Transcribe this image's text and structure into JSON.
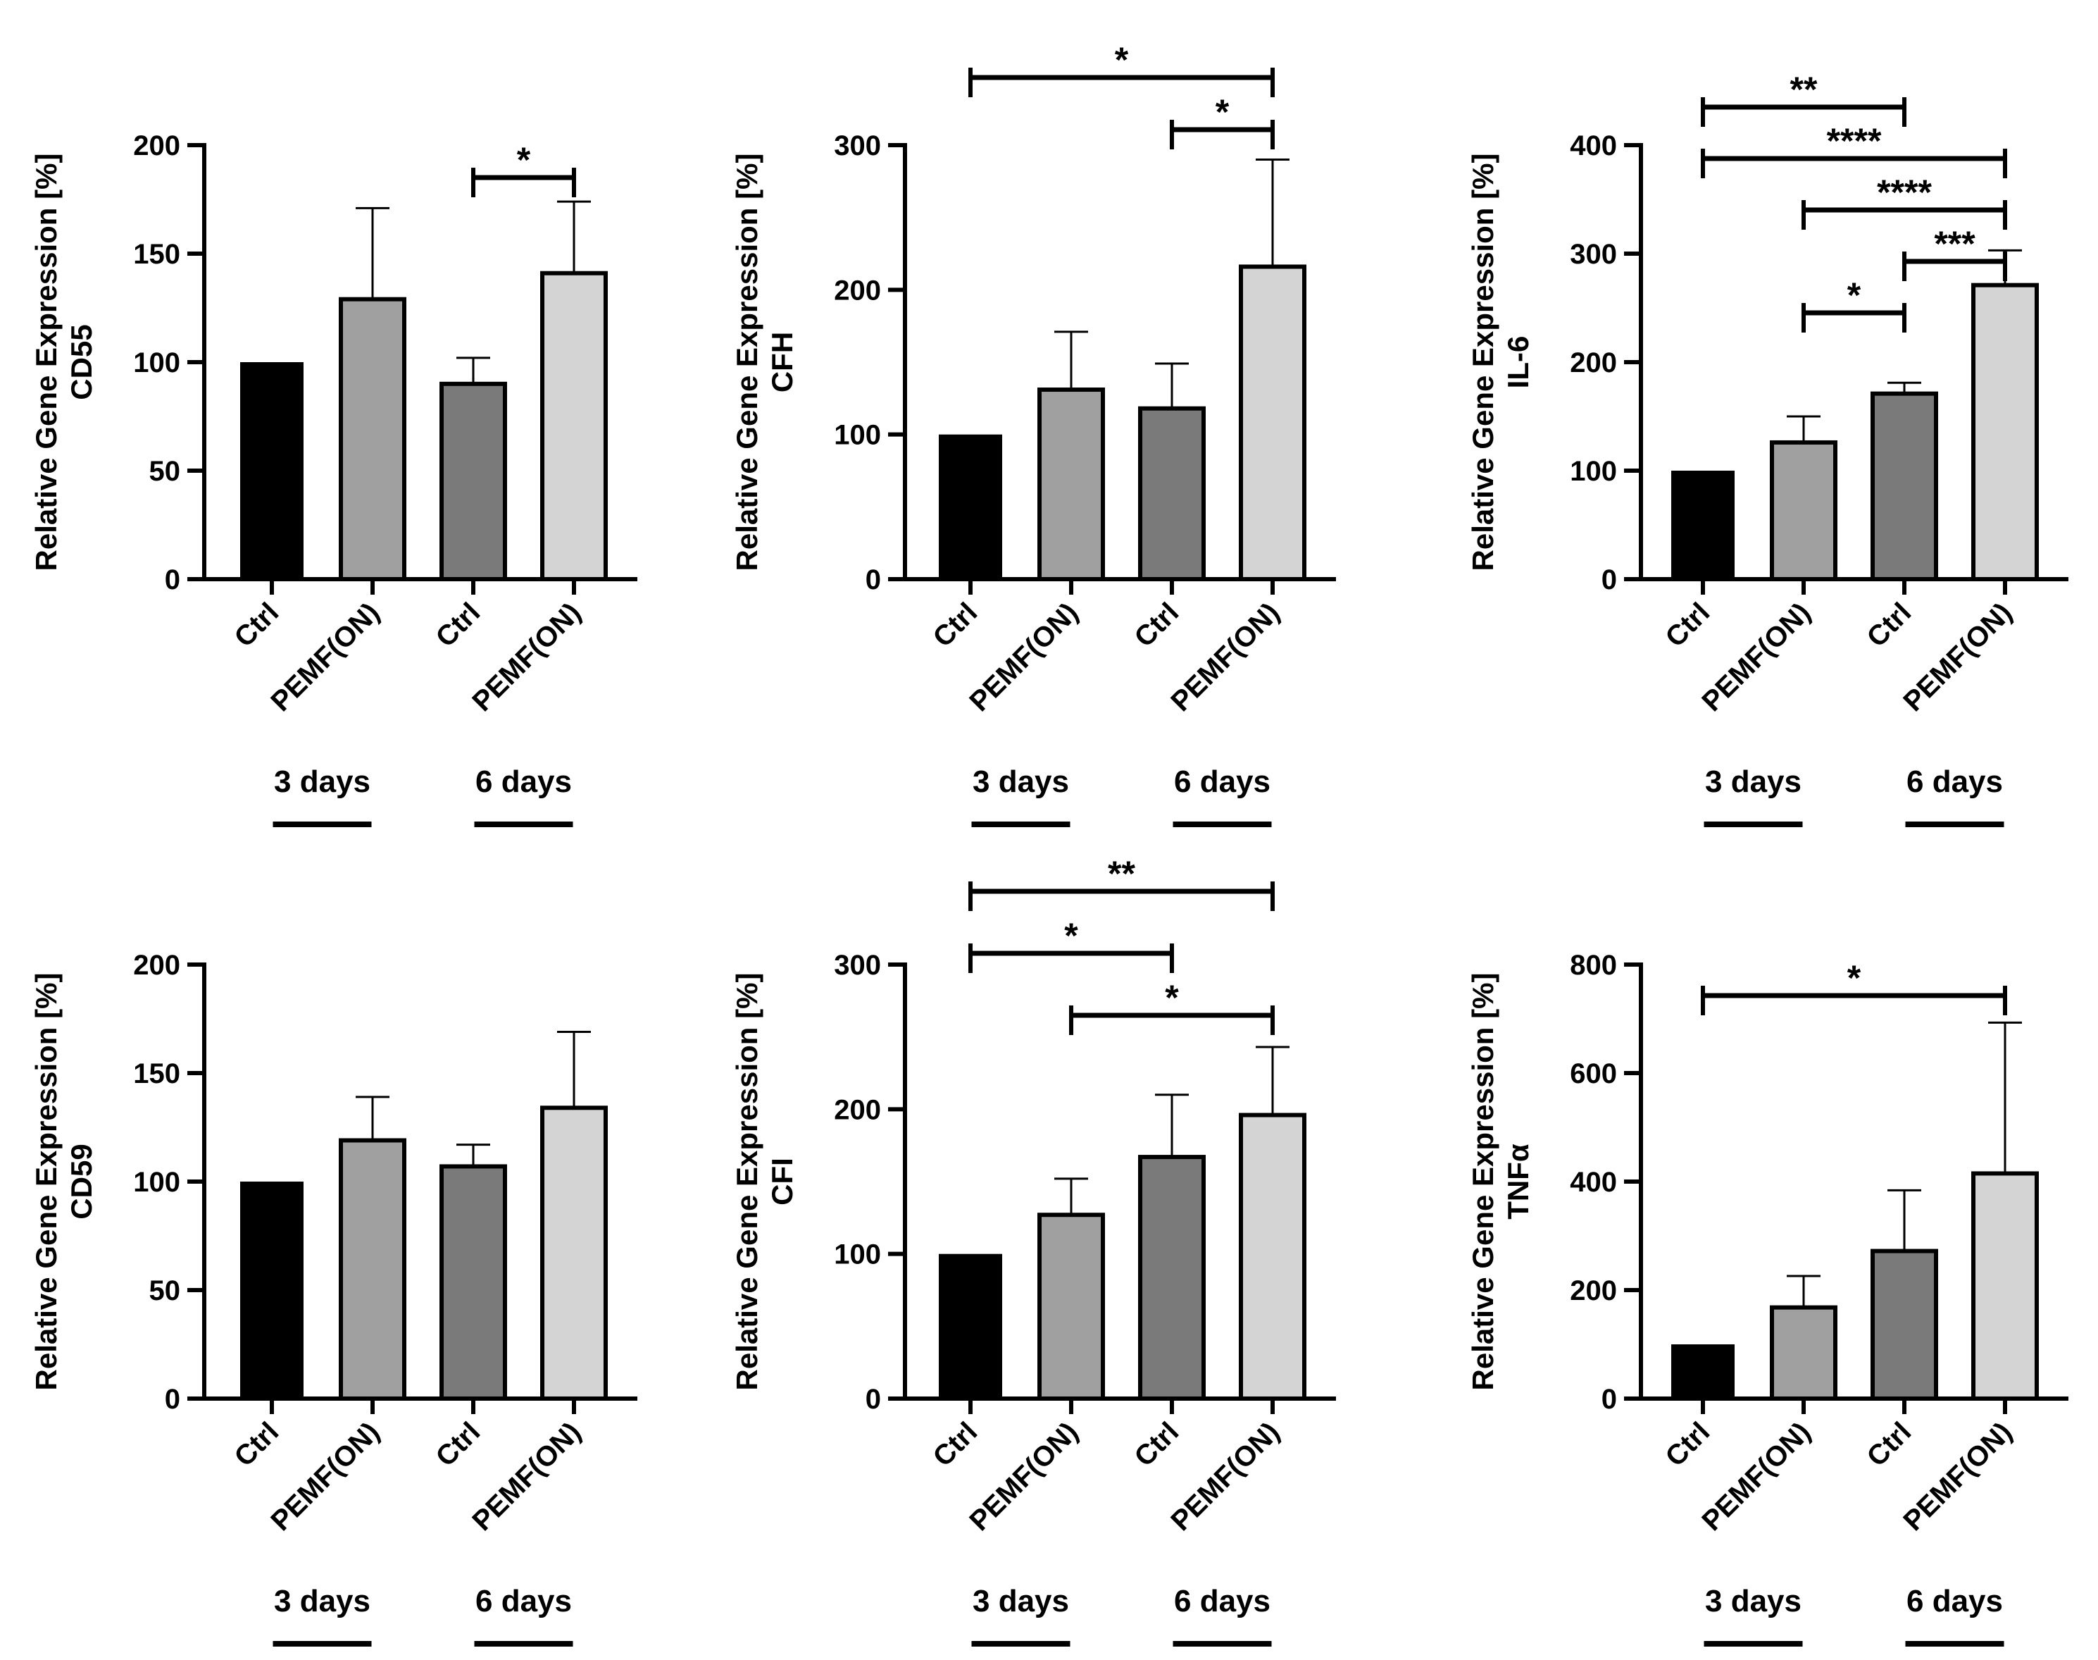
{
  "chart_data": [
    {
      "type": "bar",
      "ylabel": "Relative Gene Expression [%]",
      "gene": "CD55",
      "categories": [
        "Ctrl",
        "PEMF(ON)",
        "Ctrl",
        "PEMF(ON)"
      ],
      "groups": [
        "3 days",
        "6 days"
      ],
      "values": [
        100,
        129,
        90,
        141
      ],
      "errors": [
        0,
        42,
        12,
        33
      ],
      "colors": [
        "#000000",
        "#a0a0a0",
        "#7a7a7a",
        "#d4d4d4"
      ],
      "ylim": [
        0,
        200
      ],
      "yticks": [
        "0",
        "50",
        "100",
        "150",
        "200"
      ],
      "significance": [
        {
          "from": 2,
          "to": 3,
          "label": "*",
          "level": 1
        }
      ]
    },
    {
      "type": "bar",
      "ylabel": "Relative Gene Expression [%]",
      "gene": "CFH",
      "categories": [
        "Ctrl",
        "PEMF(ON)",
        "Ctrl",
        "PEMF(ON)"
      ],
      "groups": [
        "3 days",
        "6 days"
      ],
      "values": [
        100,
        131,
        118,
        216
      ],
      "errors": [
        0,
        40,
        31,
        74
      ],
      "colors": [
        "#000000",
        "#a0a0a0",
        "#7a7a7a",
        "#d4d4d4"
      ],
      "ylim": [
        0,
        300
      ],
      "yticks": [
        "0",
        "100",
        "200",
        "300"
      ],
      "significance": [
        {
          "from": 2,
          "to": 3,
          "label": "*",
          "level": 1
        },
        {
          "from": 0,
          "to": 3,
          "label": "*",
          "level": 2
        }
      ]
    },
    {
      "type": "bar",
      "ylabel": "Relative Gene Expression [%]",
      "gene": "IL-6",
      "categories": [
        "Ctrl",
        "PEMF(ON)",
        "Ctrl",
        "PEMF(ON)"
      ],
      "groups": [
        "3 days",
        "6 days"
      ],
      "values": [
        100,
        126,
        171,
        271
      ],
      "errors": [
        0,
        24,
        10,
        32
      ],
      "colors": [
        "#000000",
        "#a0a0a0",
        "#7a7a7a",
        "#d4d4d4"
      ],
      "ylim": [
        0,
        400
      ],
      "yticks": [
        "0",
        "100",
        "200",
        "300",
        "400"
      ],
      "significance": [
        {
          "from": 1,
          "to": 2,
          "label": "*",
          "level": 1
        },
        {
          "from": 2,
          "to": 3,
          "label": "***",
          "level": 2
        },
        {
          "from": 1,
          "to": 3,
          "label": "****",
          "level": 3
        },
        {
          "from": 0,
          "to": 3,
          "label": "****",
          "level": 4
        },
        {
          "from": 0,
          "to": 2,
          "label": "**",
          "level": 5
        }
      ]
    },
    {
      "type": "bar",
      "ylabel": "Relative Gene Expression [%]",
      "gene": "CD59",
      "categories": [
        "Ctrl",
        "PEMF(ON)",
        "Ctrl",
        "PEMF(ON)"
      ],
      "groups": [
        "3 days",
        "6 days"
      ],
      "values": [
        100,
        119,
        107,
        134
      ],
      "errors": [
        0,
        20,
        10,
        35
      ],
      "colors": [
        "#000000",
        "#a0a0a0",
        "#7a7a7a",
        "#d4d4d4"
      ],
      "ylim": [
        0,
        200
      ],
      "yticks": [
        "0",
        "50",
        "100",
        "150",
        "200"
      ],
      "significance": []
    },
    {
      "type": "bar",
      "ylabel": "Relative Gene Expression [%]",
      "gene": "CFI",
      "categories": [
        "Ctrl",
        "PEMF(ON)",
        "Ctrl",
        "PEMF(ON)"
      ],
      "groups": [
        "3 days",
        "6 days"
      ],
      "values": [
        100,
        127,
        167,
        196
      ],
      "errors": [
        0,
        25,
        43,
        47
      ],
      "colors": [
        "#000000",
        "#a0a0a0",
        "#7a7a7a",
        "#d4d4d4"
      ],
      "ylim": [
        0,
        300
      ],
      "yticks": [
        "0",
        "100",
        "200",
        "300"
      ],
      "significance": [
        {
          "from": 1,
          "to": 3,
          "label": "*",
          "level": 1
        },
        {
          "from": 0,
          "to": 2,
          "label": "*",
          "level": 2
        },
        {
          "from": 0,
          "to": 3,
          "label": "**",
          "level": 3
        }
      ]
    },
    {
      "type": "bar",
      "ylabel": "Relative Gene Expression [%]",
      "gene": "TNFα",
      "categories": [
        "Ctrl",
        "PEMF(ON)",
        "Ctrl",
        "PEMF(ON)"
      ],
      "groups": [
        "3 days",
        "6 days"
      ],
      "values": [
        100,
        168,
        272,
        415
      ],
      "errors": [
        0,
        58,
        112,
        278
      ],
      "colors": [
        "#000000",
        "#a0a0a0",
        "#7a7a7a",
        "#d4d4d4"
      ],
      "ylim": [
        0,
        800
      ],
      "yticks": [
        "0",
        "200",
        "400",
        "600",
        "800"
      ],
      "significance": [
        {
          "from": 0,
          "to": 3,
          "label": "*",
          "level": 1
        }
      ]
    }
  ]
}
